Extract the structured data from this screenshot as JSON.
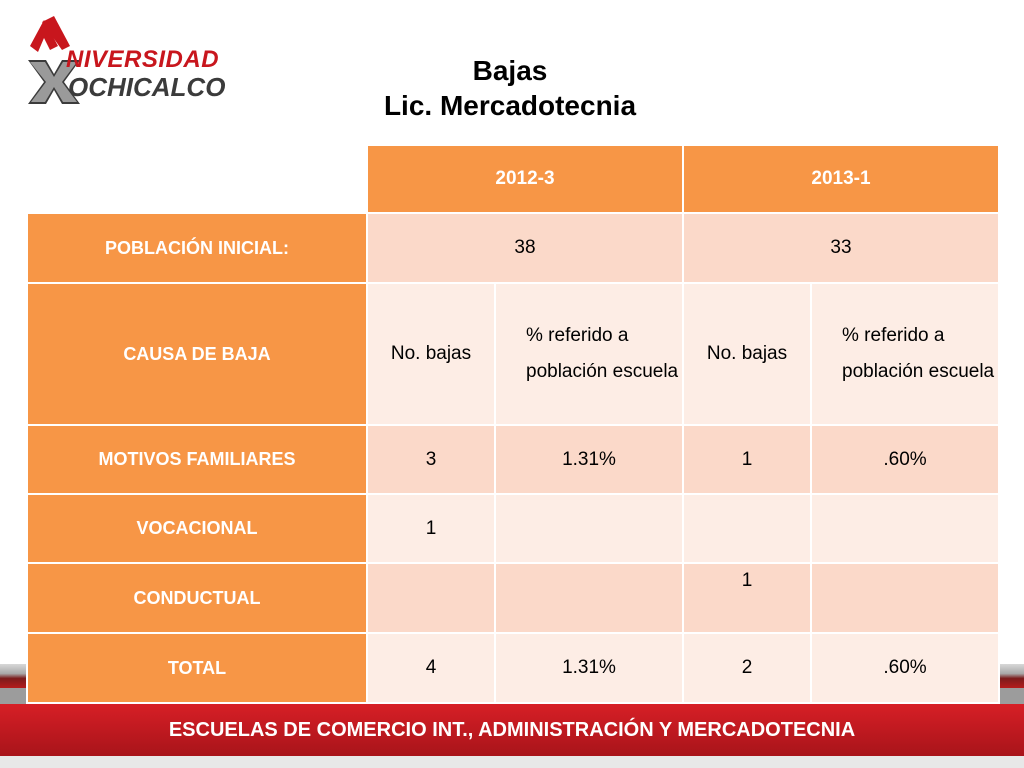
{
  "logo": {
    "line1": "NIVERSIDAD",
    "line2": "OCHICALCO"
  },
  "title": {
    "line1": "Bajas",
    "line2": "Lic. Mercadotecnia"
  },
  "table": {
    "periods": [
      "2012-3",
      "2013-1"
    ],
    "poblacion_label": "POBLACIÓN INICIAL:",
    "poblacion_values": [
      "38",
      "33"
    ],
    "causa_label": "CAUSA DE BAJA",
    "subheaders": [
      "No. bajas",
      "% referido a población escuela",
      "No. bajas",
      "% referido a población escuela"
    ],
    "rows": [
      {
        "label": "MOTIVOS FAMILIARES",
        "values": [
          "3",
          "1.31%",
          "1",
          ".60%"
        ]
      },
      {
        "label": "VOCACIONAL",
        "values": [
          "1",
          "",
          "",
          ""
        ]
      },
      {
        "label": "CONDUCTUAL",
        "values": [
          "",
          "",
          "1",
          ""
        ]
      },
      {
        "label": "TOTAL",
        "values": [
          "4",
          "1.31%",
          "2",
          ".60%"
        ]
      }
    ]
  },
  "footer": {
    "text": "ESCUELAS DE COMERCIO INT., ADMINISTRACIÓN Y MERCADOTECNIA"
  },
  "colors": {
    "header_orange": "#f79646",
    "cell_dark": "#fbd9c9",
    "cell_light": "#fdede5",
    "footer_red": "#c8161d"
  }
}
